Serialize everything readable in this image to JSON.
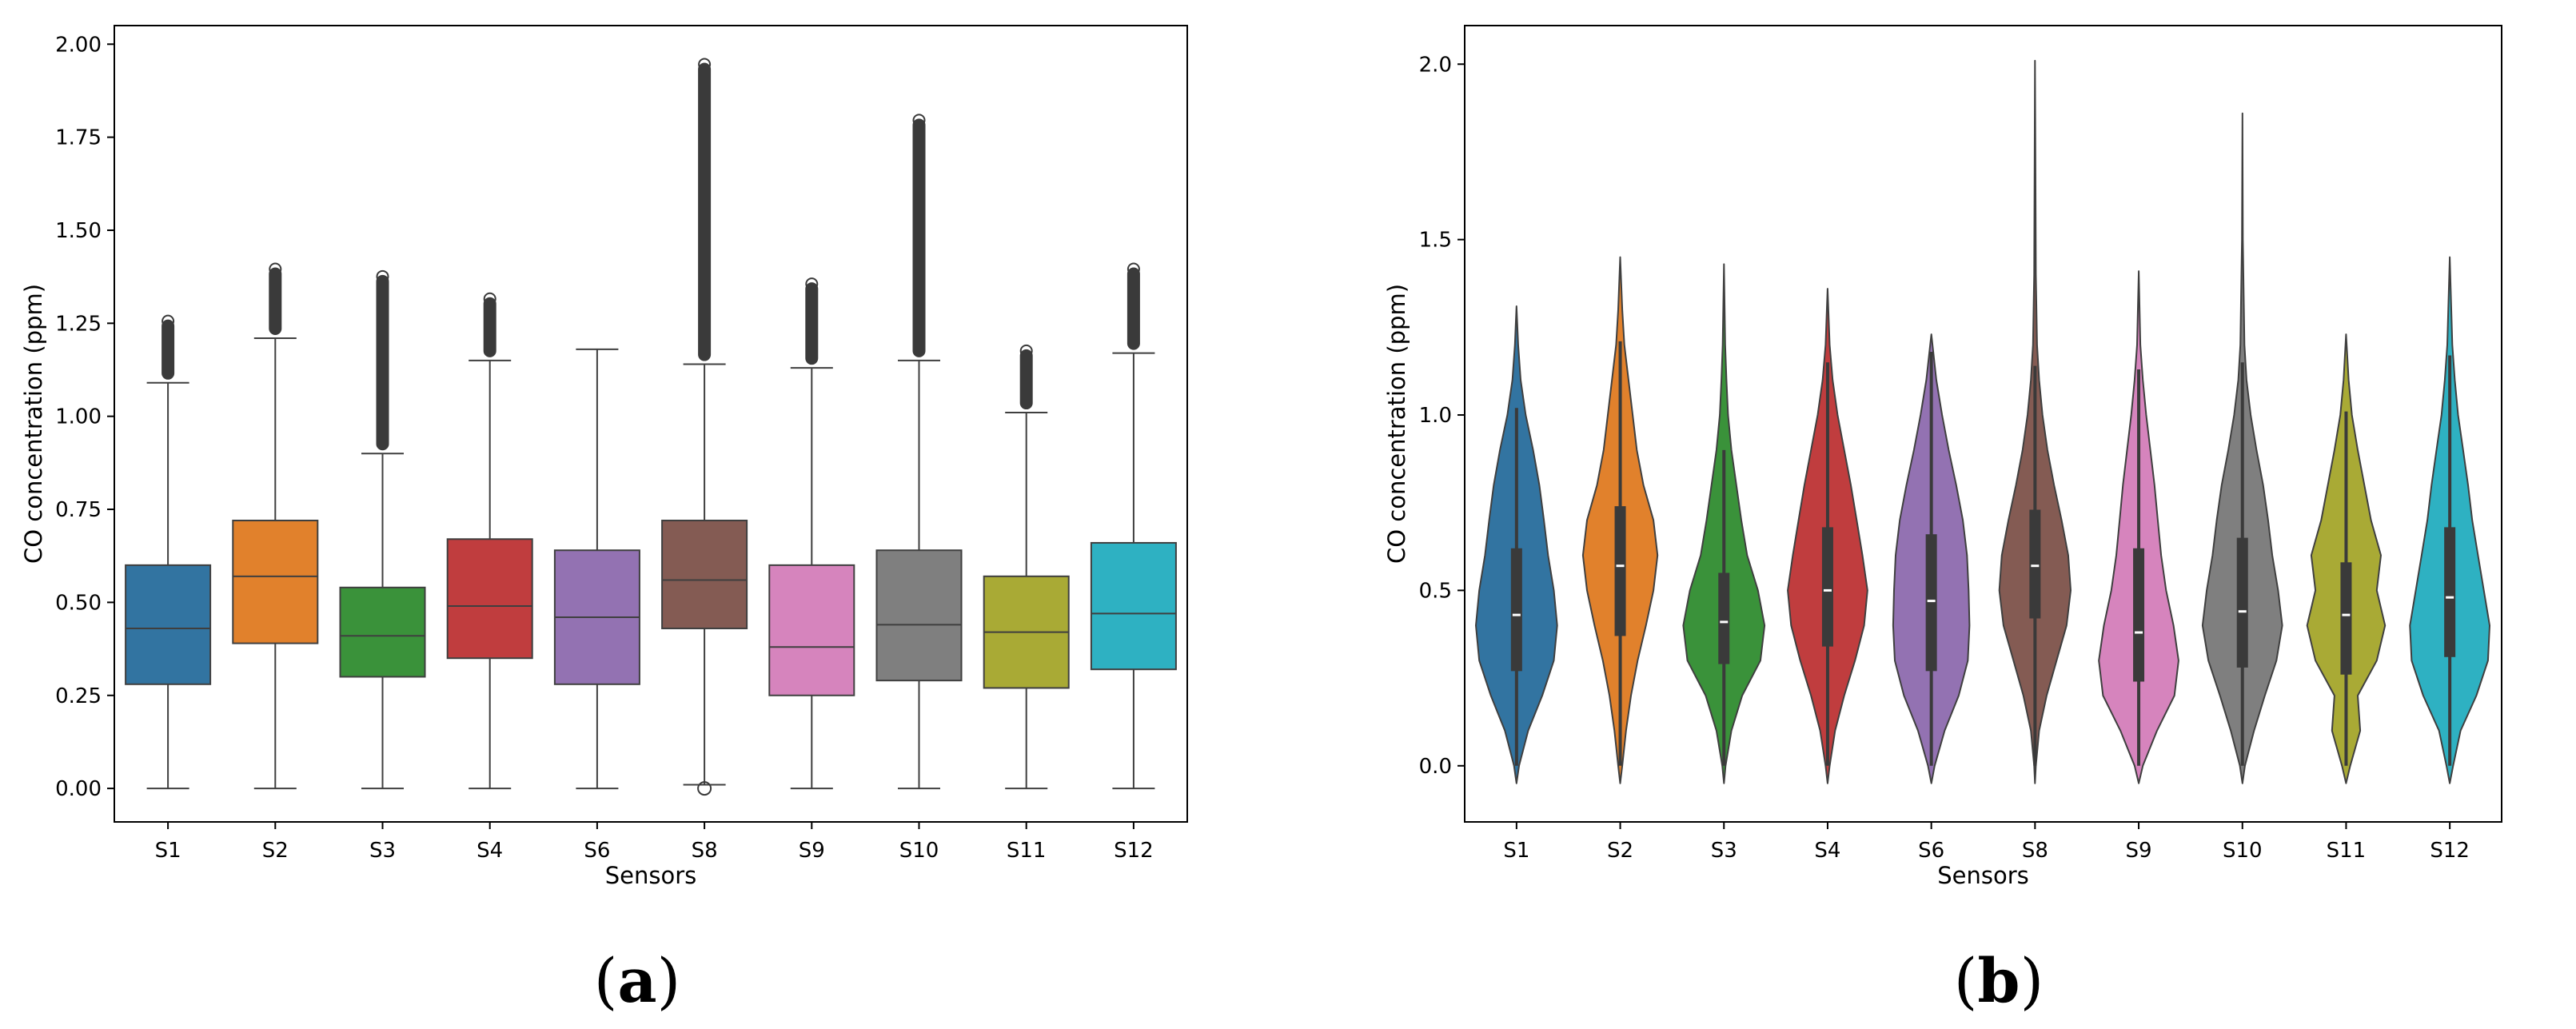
{
  "chart_data": [
    {
      "type": "box",
      "panel_label": "(a)",
      "panel_letter": "a",
      "xlabel": "Sensors",
      "ylabel": "CO concentration (ppm)",
      "ylim": [
        -0.09,
        2.05
      ],
      "yticks": [
        0.0,
        0.25,
        0.5,
        0.75,
        1.0,
        1.25,
        1.5,
        1.75,
        2.0
      ],
      "ytick_labels": [
        "0.00",
        "0.25",
        "0.50",
        "0.75",
        "1.00",
        "1.25",
        "1.50",
        "1.75",
        "2.00"
      ],
      "categories": [
        "S1",
        "S2",
        "S3",
        "S4",
        "S6",
        "S8",
        "S9",
        "S10",
        "S11",
        "S12"
      ],
      "colors": [
        "#3274a1",
        "#e1812c",
        "#3a923a",
        "#c03d3e",
        "#9372b2",
        "#845b53",
        "#d684bd",
        "#7f7f7f",
        "#a9aa35",
        "#2eb1c2"
      ],
      "boxes": [
        {
          "q1": 0.28,
          "median": 0.43,
          "q3": 0.6,
          "whisker_low": 0.0,
          "whisker_high": 1.09,
          "outlier_low": null,
          "outlier_high": 1.26
        },
        {
          "q1": 0.39,
          "median": 0.57,
          "q3": 0.72,
          "whisker_low": 0.0,
          "whisker_high": 1.21,
          "outlier_low": null,
          "outlier_high": 1.4
        },
        {
          "q1": 0.3,
          "median": 0.41,
          "q3": 0.54,
          "whisker_low": 0.0,
          "whisker_high": 0.9,
          "outlier_low": null,
          "outlier_high": 1.38
        },
        {
          "q1": 0.35,
          "median": 0.49,
          "q3": 0.67,
          "whisker_low": 0.0,
          "whisker_high": 1.15,
          "outlier_low": null,
          "outlier_high": 1.32
        },
        {
          "q1": 0.28,
          "median": 0.46,
          "q3": 0.64,
          "whisker_low": 0.0,
          "whisker_high": 1.18,
          "outlier_low": null,
          "outlier_high": null
        },
        {
          "q1": 0.43,
          "median": 0.56,
          "q3": 0.72,
          "whisker_low": 0.01,
          "whisker_high": 1.14,
          "outlier_low": 0.0,
          "outlier_high": 1.95
        },
        {
          "q1": 0.25,
          "median": 0.38,
          "q3": 0.6,
          "whisker_low": 0.0,
          "whisker_high": 1.13,
          "outlier_low": null,
          "outlier_high": 1.36
        },
        {
          "q1": 0.29,
          "median": 0.44,
          "q3": 0.64,
          "whisker_low": 0.0,
          "whisker_high": 1.15,
          "outlier_low": null,
          "outlier_high": 1.8
        },
        {
          "q1": 0.27,
          "median": 0.42,
          "q3": 0.57,
          "whisker_low": 0.0,
          "whisker_high": 1.01,
          "outlier_low": null,
          "outlier_high": 1.18
        },
        {
          "q1": 0.32,
          "median": 0.47,
          "q3": 0.66,
          "whisker_low": 0.0,
          "whisker_high": 1.17,
          "outlier_low": null,
          "outlier_high": 1.4
        }
      ]
    },
    {
      "type": "violin",
      "panel_label": "(b)",
      "panel_letter": "b",
      "xlabel": "Sensors",
      "ylabel": "CO concentration (ppm)",
      "ylim": [
        -0.16,
        2.11
      ],
      "yticks": [
        0.0,
        0.5,
        1.0,
        1.5,
        2.0
      ],
      "ytick_labels": [
        "0.0",
        "0.5",
        "1.0",
        "1.5",
        "2.0"
      ],
      "categories": [
        "S1",
        "S2",
        "S3",
        "S4",
        "S6",
        "S8",
        "S9",
        "S10",
        "S11",
        "S12"
      ],
      "colors": [
        "#3274a1",
        "#e1812c",
        "#3a923a",
        "#c03d3e",
        "#9372b2",
        "#845b53",
        "#d684bd",
        "#7f7f7f",
        "#a9aa35",
        "#2eb1c2"
      ],
      "violins": [
        {
          "min": -0.05,
          "max": 1.31,
          "q1": 0.27,
          "median": 0.43,
          "q3": 0.62,
          "wlow": 0.0,
          "whigh": 1.02,
          "profile": [
            [
              -0.05,
              0.0
            ],
            [
              0.0,
              0.06
            ],
            [
              0.1,
              0.28
            ],
            [
              0.2,
              0.62
            ],
            [
              0.3,
              0.9
            ],
            [
              0.4,
              0.98
            ],
            [
              0.5,
              0.9
            ],
            [
              0.6,
              0.76
            ],
            [
              0.7,
              0.66
            ],
            [
              0.8,
              0.55
            ],
            [
              0.9,
              0.4
            ],
            [
              1.0,
              0.22
            ],
            [
              1.1,
              0.1
            ],
            [
              1.2,
              0.04
            ],
            [
              1.31,
              0.0
            ]
          ]
        },
        {
          "min": -0.05,
          "max": 1.45,
          "q1": 0.37,
          "median": 0.57,
          "q3": 0.74,
          "wlow": 0.0,
          "whigh": 1.21,
          "profile": [
            [
              -0.05,
              0.0
            ],
            [
              0.0,
              0.05
            ],
            [
              0.1,
              0.14
            ],
            [
              0.2,
              0.26
            ],
            [
              0.3,
              0.42
            ],
            [
              0.4,
              0.62
            ],
            [
              0.5,
              0.8
            ],
            [
              0.6,
              0.9
            ],
            [
              0.7,
              0.8
            ],
            [
              0.8,
              0.56
            ],
            [
              0.9,
              0.4
            ],
            [
              1.0,
              0.3
            ],
            [
              1.1,
              0.2
            ],
            [
              1.2,
              0.1
            ],
            [
              1.3,
              0.05
            ],
            [
              1.45,
              0.0
            ]
          ]
        },
        {
          "min": -0.05,
          "max": 1.43,
          "q1": 0.29,
          "median": 0.41,
          "q3": 0.55,
          "wlow": 0.0,
          "whigh": 0.9,
          "profile": [
            [
              -0.05,
              0.0
            ],
            [
              0.0,
              0.04
            ],
            [
              0.1,
              0.18
            ],
            [
              0.2,
              0.44
            ],
            [
              0.3,
              0.88
            ],
            [
              0.4,
              0.98
            ],
            [
              0.5,
              0.82
            ],
            [
              0.6,
              0.56
            ],
            [
              0.7,
              0.42
            ],
            [
              0.8,
              0.3
            ],
            [
              0.9,
              0.18
            ],
            [
              1.0,
              0.1
            ],
            [
              1.1,
              0.06
            ],
            [
              1.2,
              0.03
            ],
            [
              1.43,
              0.0
            ]
          ]
        },
        {
          "min": -0.05,
          "max": 1.36,
          "q1": 0.34,
          "median": 0.5,
          "q3": 0.68,
          "wlow": 0.0,
          "whigh": 1.15,
          "profile": [
            [
              -0.05,
              0.0
            ],
            [
              0.0,
              0.05
            ],
            [
              0.1,
              0.18
            ],
            [
              0.2,
              0.4
            ],
            [
              0.3,
              0.66
            ],
            [
              0.4,
              0.88
            ],
            [
              0.5,
              0.96
            ],
            [
              0.6,
              0.84
            ],
            [
              0.7,
              0.7
            ],
            [
              0.8,
              0.56
            ],
            [
              0.9,
              0.4
            ],
            [
              1.0,
              0.24
            ],
            [
              1.1,
              0.12
            ],
            [
              1.2,
              0.05
            ],
            [
              1.36,
              0.0
            ]
          ]
        },
        {
          "min": -0.05,
          "max": 1.23,
          "q1": 0.27,
          "median": 0.47,
          "q3": 0.66,
          "wlow": 0.0,
          "whigh": 1.18,
          "profile": [
            [
              -0.05,
              0.0
            ],
            [
              0.0,
              0.08
            ],
            [
              0.1,
              0.32
            ],
            [
              0.2,
              0.66
            ],
            [
              0.3,
              0.88
            ],
            [
              0.4,
              0.92
            ],
            [
              0.5,
              0.9
            ],
            [
              0.6,
              0.86
            ],
            [
              0.7,
              0.76
            ],
            [
              0.8,
              0.6
            ],
            [
              0.9,
              0.42
            ],
            [
              1.0,
              0.26
            ],
            [
              1.1,
              0.12
            ],
            [
              1.23,
              0.0
            ]
          ]
        },
        {
          "min": -0.05,
          "max": 2.01,
          "q1": 0.42,
          "median": 0.57,
          "q3": 0.73,
          "wlow": 0.0,
          "whigh": 1.14,
          "profile": [
            [
              -0.05,
              0.0
            ],
            [
              0.0,
              0.02
            ],
            [
              0.1,
              0.1
            ],
            [
              0.2,
              0.28
            ],
            [
              0.3,
              0.52
            ],
            [
              0.4,
              0.76
            ],
            [
              0.5,
              0.86
            ],
            [
              0.6,
              0.8
            ],
            [
              0.7,
              0.64
            ],
            [
              0.8,
              0.46
            ],
            [
              0.9,
              0.3
            ],
            [
              1.0,
              0.18
            ],
            [
              1.1,
              0.1
            ],
            [
              1.2,
              0.05
            ],
            [
              1.4,
              0.02
            ],
            [
              1.7,
              0.01
            ],
            [
              2.01,
              0.0
            ]
          ]
        },
        {
          "min": -0.05,
          "max": 1.41,
          "q1": 0.24,
          "median": 0.38,
          "q3": 0.62,
          "wlow": 0.0,
          "whigh": 1.13,
          "profile": [
            [
              -0.05,
              0.0
            ],
            [
              0.0,
              0.1
            ],
            [
              0.1,
              0.44
            ],
            [
              0.2,
              0.86
            ],
            [
              0.3,
              0.96
            ],
            [
              0.4,
              0.84
            ],
            [
              0.5,
              0.66
            ],
            [
              0.6,
              0.54
            ],
            [
              0.7,
              0.46
            ],
            [
              0.8,
              0.38
            ],
            [
              0.9,
              0.28
            ],
            [
              1.0,
              0.18
            ],
            [
              1.1,
              0.1
            ],
            [
              1.2,
              0.04
            ],
            [
              1.41,
              0.0
            ]
          ]
        },
        {
          "min": -0.05,
          "max": 1.86,
          "q1": 0.28,
          "median": 0.44,
          "q3": 0.65,
          "wlow": 0.0,
          "whigh": 1.15,
          "profile": [
            [
              -0.05,
              0.0
            ],
            [
              0.0,
              0.06
            ],
            [
              0.1,
              0.28
            ],
            [
              0.2,
              0.54
            ],
            [
              0.3,
              0.82
            ],
            [
              0.4,
              0.96
            ],
            [
              0.5,
              0.86
            ],
            [
              0.6,
              0.72
            ],
            [
              0.7,
              0.62
            ],
            [
              0.8,
              0.5
            ],
            [
              0.9,
              0.34
            ],
            [
              1.0,
              0.2
            ],
            [
              1.1,
              0.1
            ],
            [
              1.2,
              0.05
            ],
            [
              1.5,
              0.01
            ],
            [
              1.86,
              0.0
            ]
          ]
        },
        {
          "min": -0.05,
          "max": 1.23,
          "q1": 0.26,
          "median": 0.43,
          "q3": 0.58,
          "wlow": 0.0,
          "whigh": 1.01,
          "profile": [
            [
              -0.05,
              0.0
            ],
            [
              0.0,
              0.1
            ],
            [
              0.1,
              0.34
            ],
            [
              0.2,
              0.28
            ],
            [
              0.3,
              0.74
            ],
            [
              0.4,
              0.94
            ],
            [
              0.5,
              0.74
            ],
            [
              0.6,
              0.84
            ],
            [
              0.7,
              0.6
            ],
            [
              0.8,
              0.44
            ],
            [
              0.9,
              0.28
            ],
            [
              1.0,
              0.14
            ],
            [
              1.1,
              0.06
            ],
            [
              1.23,
              0.0
            ]
          ]
        },
        {
          "min": -0.05,
          "max": 1.45,
          "q1": 0.31,
          "median": 0.48,
          "q3": 0.68,
          "wlow": 0.0,
          "whigh": 1.17,
          "profile": [
            [
              -0.05,
              0.0
            ],
            [
              0.0,
              0.08
            ],
            [
              0.1,
              0.26
            ],
            [
              0.2,
              0.64
            ],
            [
              0.3,
              0.92
            ],
            [
              0.4,
              0.96
            ],
            [
              0.5,
              0.82
            ],
            [
              0.6,
              0.68
            ],
            [
              0.7,
              0.54
            ],
            [
              0.8,
              0.44
            ],
            [
              0.9,
              0.32
            ],
            [
              1.0,
              0.2
            ],
            [
              1.1,
              0.12
            ],
            [
              1.2,
              0.06
            ],
            [
              1.45,
              0.0
            ]
          ]
        }
      ]
    }
  ]
}
